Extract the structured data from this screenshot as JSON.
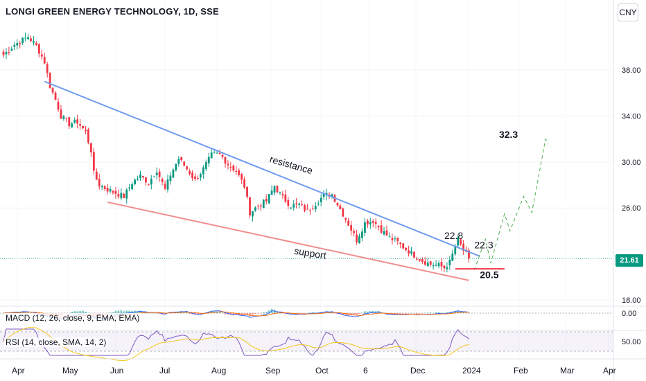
{
  "header": {
    "symbol_title": "LONGI GREEN ENERGY TECHNOLOGY, 1D, SSE",
    "currency": "CNY"
  },
  "price_badge": "21.61",
  "indicators": {
    "macd_label": "MACD (12, 26, close, 9, EMA, EMA)",
    "macd_value": "0.00",
    "rsi_label": "RSI (14, close, SMA, 14, 2)",
    "rsi_value": "50.00"
  },
  "colors": {
    "up": "#089981",
    "down": "#f23645",
    "resistance": "#6f9cf0",
    "support": "#f08f8f",
    "forecast": "#4caf50",
    "target": "#f23645",
    "rsi": "#7e57c2",
    "rsi_ma": "#f5c518"
  },
  "chart_data": {
    "type": "candlestick",
    "symbol": "LONGI GREEN ENERGY TECHNOLOGY",
    "interval": "1D",
    "exchange": "SSE",
    "currency": "CNY",
    "y_ticks": [
      "38.00",
      "34.00",
      "30.00",
      "26.00",
      "18.00"
    ],
    "x_ticks": [
      "Apr",
      "May",
      "Jun",
      "Jul",
      "Aug",
      "Sep",
      "Oct",
      "6",
      "Dec",
      "2024",
      "Feb",
      "Mar",
      "Apr"
    ],
    "last_price": 21.61,
    "close_path": [
      [
        0,
        39.3
      ],
      [
        4,
        40.2
      ],
      [
        9,
        40.9
      ],
      [
        12,
        40.1
      ],
      [
        15,
        38.7
      ],
      [
        17,
        36.6
      ],
      [
        19,
        35.4
      ],
      [
        21,
        34.0
      ],
      [
        24,
        33.3
      ],
      [
        27,
        33.5
      ],
      [
        30,
        32.6
      ],
      [
        32,
        31.0
      ],
      [
        33,
        29.0
      ],
      [
        35,
        28.0
      ],
      [
        38,
        27.6
      ],
      [
        41,
        27.3
      ],
      [
        44,
        27.0
      ],
      [
        47,
        28.2
      ],
      [
        50,
        28.8
      ],
      [
        53,
        28.2
      ],
      [
        56,
        29.3
      ],
      [
        59,
        27.6
      ],
      [
        61,
        28.9
      ],
      [
        64,
        30.3
      ],
      [
        67,
        29.4
      ],
      [
        70,
        28.4
      ],
      [
        73,
        29.4
      ],
      [
        76,
        30.6
      ],
      [
        79,
        30.7
      ],
      [
        82,
        29.8
      ],
      [
        85,
        29.2
      ],
      [
        88,
        27.9
      ],
      [
        90,
        25.6
      ],
      [
        93,
        26.2
      ],
      [
        96,
        26.6
      ],
      [
        99,
        27.9
      ],
      [
        102,
        26.9
      ],
      [
        105,
        26.2
      ],
      [
        108,
        26.3
      ],
      [
        111,
        25.7
      ],
      [
        114,
        26.4
      ],
      [
        117,
        27.1
      ],
      [
        120,
        27.2
      ],
      [
        123,
        25.9
      ],
      [
        126,
        24.6
      ],
      [
        129,
        23.2
      ],
      [
        132,
        24.7
      ],
      [
        135,
        24.9
      ],
      [
        138,
        24.1
      ],
      [
        141,
        23.4
      ],
      [
        144,
        23.0
      ],
      [
        147,
        22.4
      ],
      [
        150,
        21.9
      ],
      [
        153,
        21.4
      ],
      [
        156,
        21.1
      ],
      [
        159,
        21.0
      ],
      [
        161,
        20.8
      ],
      [
        163,
        21.3
      ],
      [
        165,
        22.6
      ],
      [
        166,
        23.2
      ],
      [
        168,
        22.3
      ],
      [
        170,
        21.61
      ]
    ],
    "candle_count": 171,
    "trendlines": [
      {
        "name": "resistance",
        "from": [
          15,
          37.0
        ],
        "to": [
          174,
          21.8
        ]
      },
      {
        "name": "support",
        "from": [
          38,
          26.5
        ],
        "to": [
          170,
          19.7
        ]
      }
    ],
    "forecast_path": [
      [
        172,
        20.6
      ],
      [
        176,
        23.3
      ],
      [
        178,
        21.2
      ],
      [
        183,
        25.5
      ],
      [
        185,
        24.0
      ],
      [
        190,
        27.0
      ],
      [
        193,
        25.6
      ],
      [
        198,
        32.0
      ],
      [
        199,
        31.6
      ]
    ],
    "horizontal_levels": [
      {
        "value": 20.7,
        "range": [
          165,
          183
        ]
      }
    ],
    "annotations": [
      {
        "text": "resistance",
        "x": 97,
        "y": 30.0,
        "rotate": 16
      },
      {
        "text": "support",
        "x": 106,
        "y": 22.0,
        "rotate": 9
      },
      {
        "text": "22.8",
        "x": 161,
        "y": 23.3,
        "bold": false
      },
      {
        "text": "22.3",
        "x": 172,
        "y": 22.5,
        "bold": false
      },
      {
        "text": "20.5",
        "x": 174,
        "y": 19.9,
        "bold": true
      },
      {
        "text": "32.3",
        "x": 181,
        "y": 32.1,
        "bold": true
      }
    ],
    "indicators": [
      {
        "name": "MACD",
        "params": "12, 26, close, 9, EMA, EMA",
        "reference_value": 0.0
      },
      {
        "name": "RSI",
        "params": "14, close, SMA, 14, 2",
        "reference_value": 50.0,
        "band": [
          30,
          70
        ]
      }
    ]
  }
}
